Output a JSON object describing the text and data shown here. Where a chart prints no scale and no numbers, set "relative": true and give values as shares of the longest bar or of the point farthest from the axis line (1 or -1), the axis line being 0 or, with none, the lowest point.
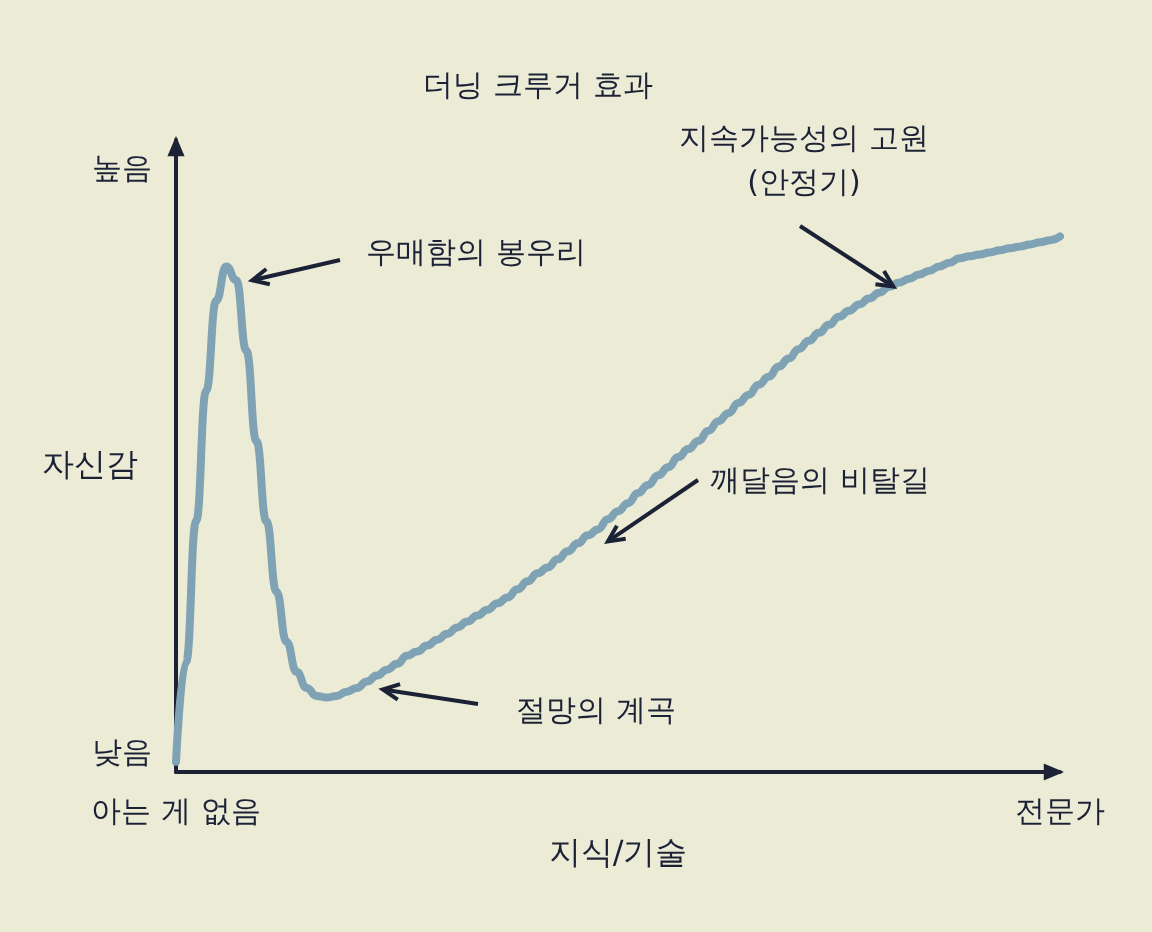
{
  "chart_data": {
    "type": "line",
    "title": "더닝 크루거 효과",
    "xlabel": "지식/기술",
    "ylabel": "자신감",
    "relative": true,
    "color": "#7fa3b5",
    "marker": "none",
    "line_style": "solid",
    "grid": false,
    "categories": [
      "아는 게 없음",
      null,
      null,
      null,
      null,
      null,
      null,
      null,
      null,
      null,
      null,
      null,
      null,
      null,
      null,
      null,
      null,
      null,
      null,
      null,
      null,
      null,
      null,
      null,
      null,
      null,
      null,
      null,
      null,
      null,
      null,
      null,
      null,
      null,
      null,
      null,
      null,
      null,
      null,
      null,
      null,
      null,
      null,
      null,
      null,
      null,
      null,
      null,
      null,
      null,
      null,
      null,
      null,
      null,
      null,
      null,
      null,
      null,
      null,
      null,
      null,
      null,
      null,
      null,
      null,
      null,
      null,
      null,
      null,
      null,
      null,
      null,
      null,
      null,
      null,
      null,
      null,
      null,
      null,
      null,
      null,
      null,
      null,
      null,
      null,
      null,
      null,
      null,
      "전문가"
    ],
    "values": [
      0.019,
      0.206,
      0.468,
      0.712,
      0.88,
      0.944,
      0.918,
      0.787,
      0.618,
      0.468,
      0.337,
      0.243,
      0.187,
      0.157,
      0.142,
      0.139,
      0.142,
      0.15,
      0.157,
      0.169,
      0.18,
      0.191,
      0.202,
      0.217,
      0.225,
      0.236,
      0.247,
      0.258,
      0.27,
      0.281,
      0.292,
      0.303,
      0.315,
      0.326,
      0.341,
      0.356,
      0.371,
      0.382,
      0.397,
      0.412,
      0.427,
      0.442,
      0.453,
      0.472,
      0.487,
      0.502,
      0.521,
      0.536,
      0.554,
      0.569,
      0.588,
      0.603,
      0.618,
      0.637,
      0.655,
      0.67,
      0.689,
      0.704,
      0.723,
      0.738,
      0.757,
      0.772,
      0.79,
      0.805,
      0.82,
      0.835,
      0.85,
      0.861,
      0.873,
      0.884,
      0.895,
      0.906,
      0.914,
      0.921,
      0.929,
      0.936,
      0.944,
      0.951,
      0.959,
      0.963,
      0.966,
      0.97,
      0.974,
      0.978,
      0.981,
      0.985,
      0.989,
      0.993,
      1
    ],
    "annotations": [
      "우매함의 봉우리",
      "절망의 계곡",
      "깨달음의 비탈길",
      "지속가능성의 고원\n(안정기)",
      "높음",
      "낮음"
    ]
  }
}
